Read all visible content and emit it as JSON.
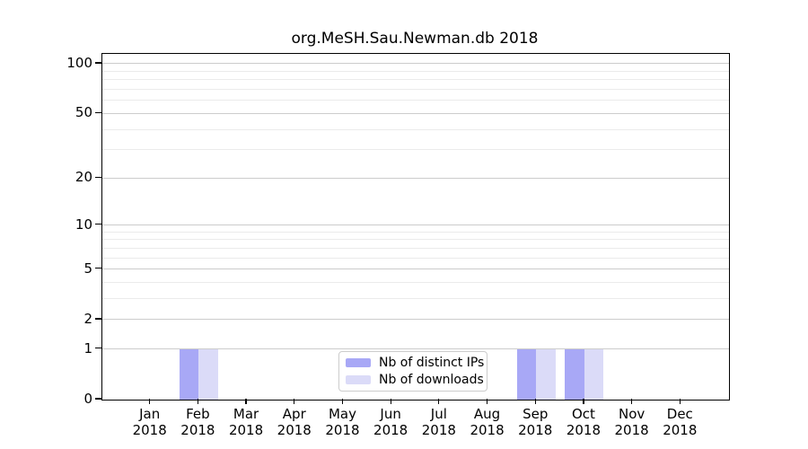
{
  "title": "org.MeSH.Sau.Newman.db 2018",
  "chart_data": {
    "type": "bar",
    "title": "org.MeSH.Sau.Newman.db 2018",
    "categories": [
      "Jan",
      "Feb",
      "Mar",
      "Apr",
      "May",
      "Jun",
      "Jul",
      "Aug",
      "Sep",
      "Oct",
      "Nov",
      "Dec"
    ],
    "year_label": "2018",
    "series": [
      {
        "name": "Nb of distinct IPs",
        "color": "#a8a8f6",
        "values": [
          0,
          1,
          0,
          0,
          0,
          0,
          0,
          0,
          1,
          1,
          0,
          0
        ]
      },
      {
        "name": "Nb of downloads",
        "color": "#dbdbf8",
        "values": [
          0,
          1,
          0,
          0,
          0,
          0,
          0,
          0,
          1,
          1,
          0,
          0
        ]
      }
    ],
    "yscale": "log1p",
    "ylim": [
      0,
      113
    ],
    "yticks": [
      0,
      1,
      2,
      5,
      10,
      20,
      50,
      100
    ],
    "minor_gridlines": [
      3,
      4,
      6,
      7,
      8,
      9,
      30,
      40,
      60,
      70,
      80,
      90
    ],
    "grid": true,
    "legend_position": "lower center",
    "colors": {
      "axis": "#000000",
      "major_grid": "#cccccc",
      "minor_grid": "#ebebeb",
      "legend_border": "#cccccc",
      "text": "#000000",
      "background": "#ffffff"
    }
  }
}
